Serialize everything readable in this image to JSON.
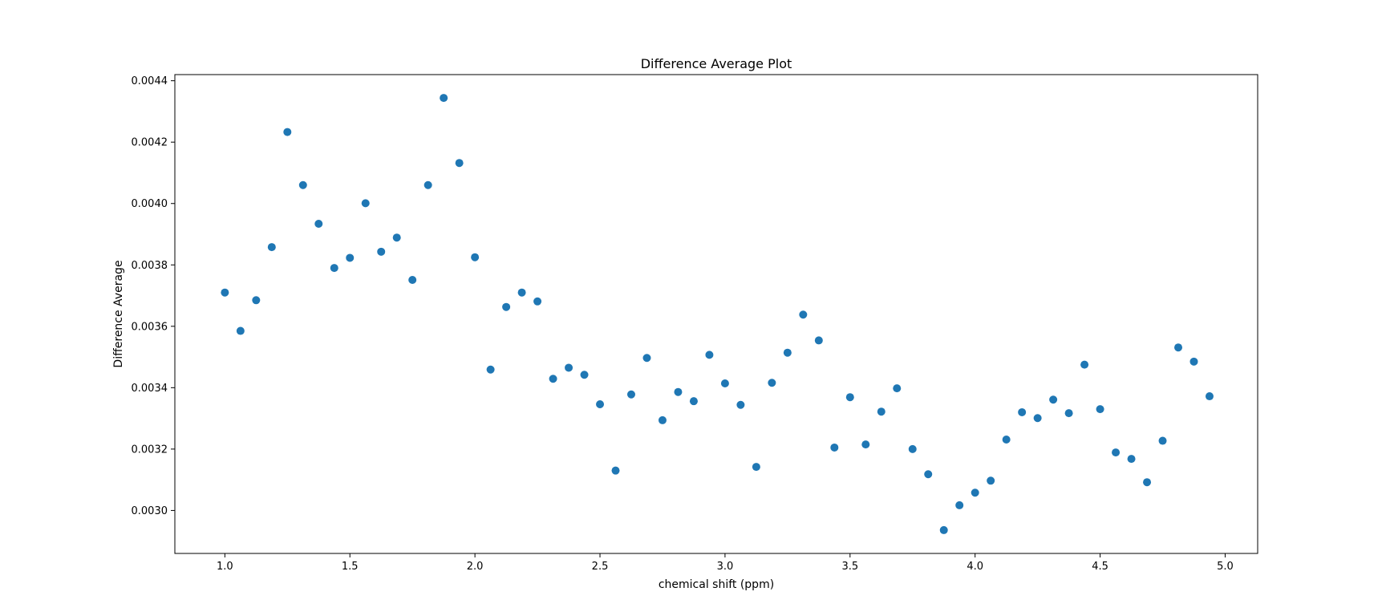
{
  "chart_data": {
    "type": "scatter",
    "title": "Difference Average Plot",
    "xlabel": "chemical shift (ppm)",
    "ylabel": "Difference Average",
    "xlim": [
      0.8,
      5.13
    ],
    "ylim": [
      0.00286,
      0.00442
    ],
    "xticks": [
      1.0,
      1.5,
      2.0,
      2.5,
      3.0,
      3.5,
      4.0,
      4.5,
      5.0
    ],
    "xtick_labels": [
      "1.0",
      "1.5",
      "2.0",
      "2.5",
      "3.0",
      "3.5",
      "4.0",
      "4.5",
      "5.0"
    ],
    "yticks": [
      0.003,
      0.0032,
      0.0034,
      0.0036,
      0.0038,
      0.004,
      0.0042,
      0.0044
    ],
    "ytick_labels": [
      "0.0030",
      "0.0032",
      "0.0034",
      "0.0036",
      "0.0038",
      "0.0040",
      "0.0042",
      "0.0044"
    ],
    "grid": false,
    "marker_color": "#1f77b4",
    "x": [
      1.0,
      1.0625,
      1.125,
      1.1875,
      1.25,
      1.3125,
      1.375,
      1.4375,
      1.5,
      1.5625,
      1.625,
      1.6875,
      1.75,
      1.8125,
      1.875,
      1.9375,
      2.0,
      2.0625,
      2.125,
      2.1875,
      2.25,
      2.3125,
      2.375,
      2.4375,
      2.5,
      2.5625,
      2.625,
      2.6875,
      2.75,
      2.8125,
      2.875,
      2.9375,
      3.0,
      3.0625,
      3.125,
      3.1875,
      3.25,
      3.3125,
      3.375,
      3.4375,
      3.5,
      3.5625,
      3.625,
      3.6875,
      3.75,
      3.8125,
      3.875,
      3.9375,
      4.0,
      4.0625,
      4.125,
      4.1875,
      4.25,
      4.3125,
      4.375,
      4.4375,
      4.5,
      4.5625,
      4.625,
      4.6875,
      4.75,
      4.8125,
      4.875,
      4.9375
    ],
    "y": [
      0.00371,
      0.003585,
      0.003685,
      0.003858,
      0.004233,
      0.00406,
      0.003934,
      0.00379,
      0.003823,
      0.004001,
      0.003843,
      0.003889,
      0.003751,
      0.00406,
      0.004344,
      0.004132,
      0.003825,
      0.003459,
      0.003663,
      0.00371,
      0.003681,
      0.003429,
      0.003465,
      0.003442,
      0.003346,
      0.00313,
      0.003378,
      0.003497,
      0.003294,
      0.003386,
      0.003356,
      0.003507,
      0.003414,
      0.003344,
      0.003142,
      0.003416,
      0.003514,
      0.003638,
      0.003554,
      0.003205,
      0.003369,
      0.003215,
      0.003322,
      0.003398,
      0.0032,
      0.003118,
      0.002936,
      0.003017,
      0.003058,
      0.003097,
      0.003231,
      0.00332,
      0.003301,
      0.003361,
      0.003317,
      0.003475,
      0.00333,
      0.003189,
      0.003168,
      0.003092,
      0.003227,
      0.003531,
      0.003485,
      0.003372
    ]
  }
}
